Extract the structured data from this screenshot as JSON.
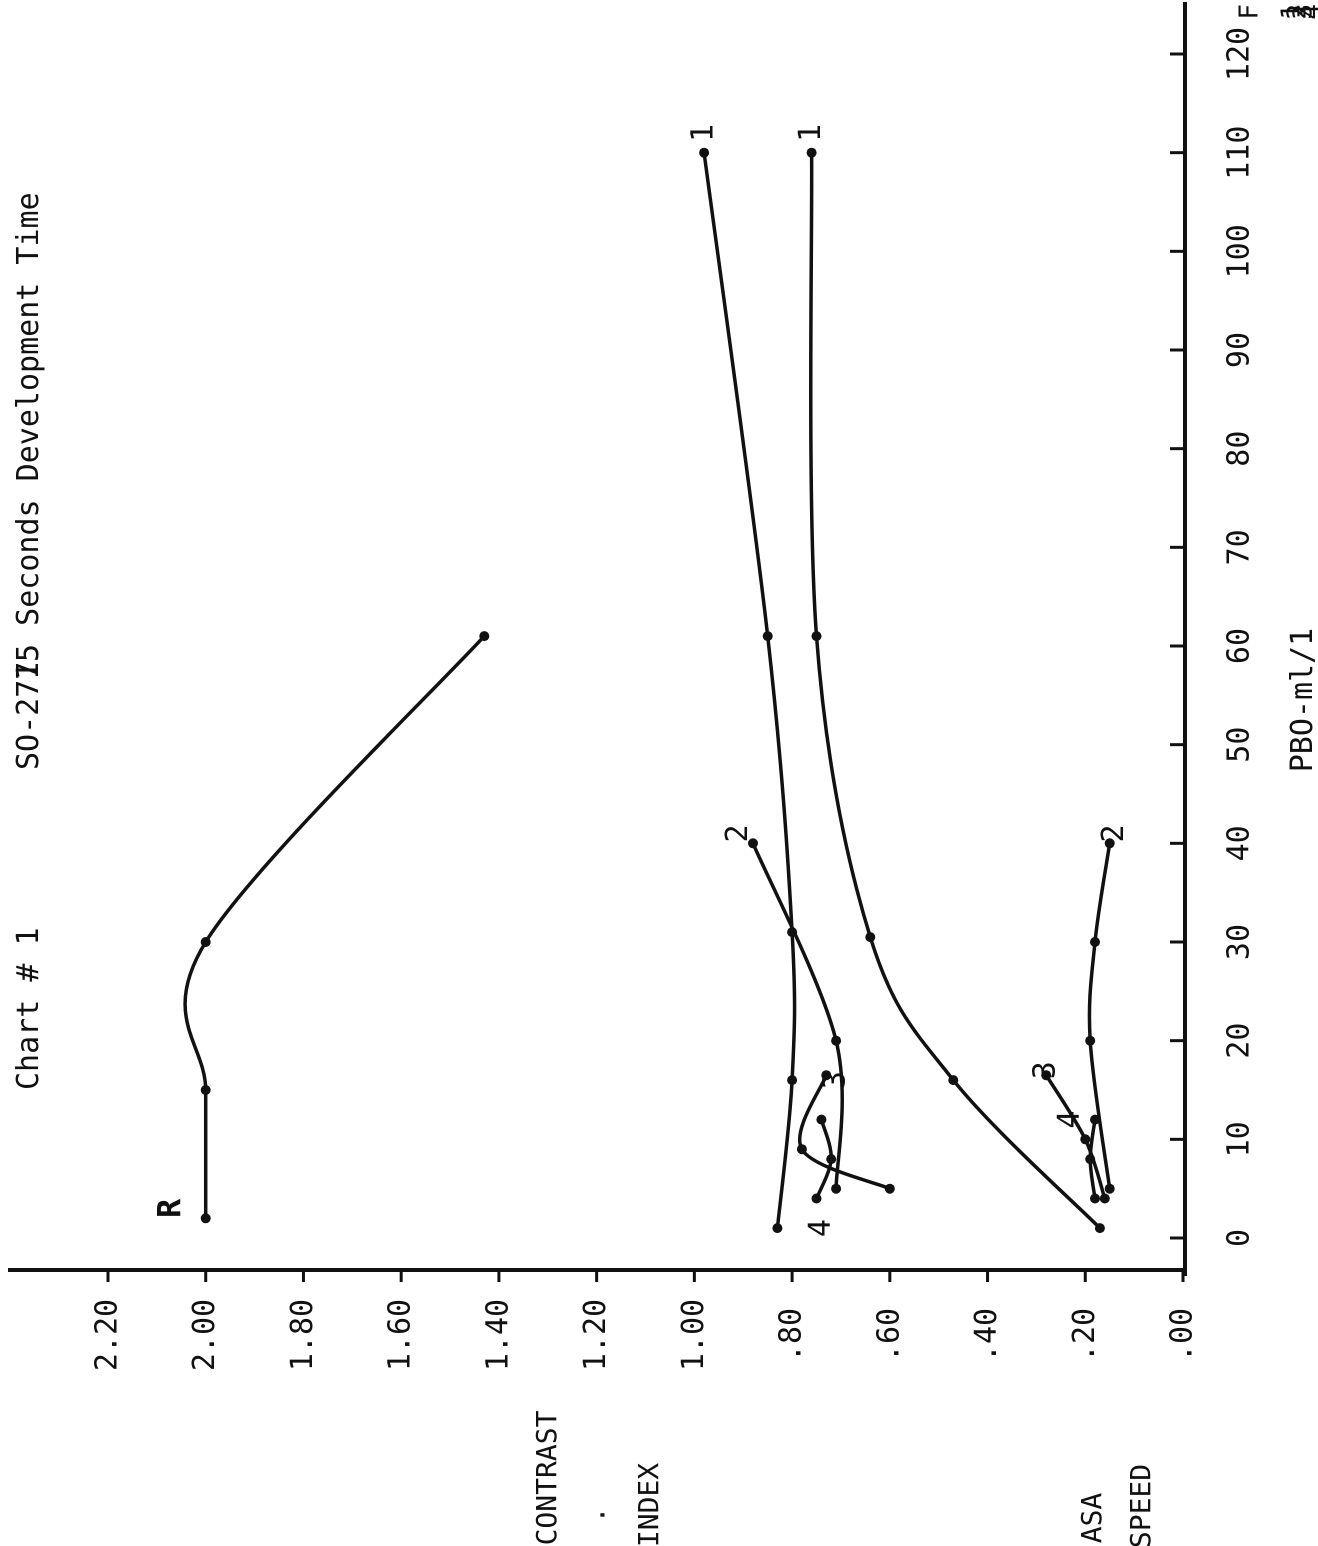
{
  "header": {
    "chart_number": "Chart # 1",
    "film": "SO-277",
    "condition": "15 Seconds Development Time",
    "corner_text": [
      "F",
      "1",
      "2",
      "3",
      "4"
    ]
  },
  "chart_data": {
    "type": "line",
    "title": "15 Seconds Development Time",
    "xlabel": "PBO-ml/1",
    "ylabel": "CONTRAST INDEX / ASA SPEED",
    "ylabel_lines": [
      "CONTRAST",
      "·",
      "INDEX",
      "",
      "ASA",
      "SPEED"
    ],
    "xlim": [
      0,
      120
    ],
    "ylim": [
      0,
      2.2
    ],
    "x_ticks": [
      0,
      10,
      20,
      30,
      40,
      50,
      60,
      70,
      80,
      90,
      100,
      110,
      120
    ],
    "x_tick_labels": [
      "0",
      "10",
      "20",
      "30",
      "40",
      "50",
      "60",
      "70",
      "80",
      "90",
      "100",
      "110",
      "120"
    ],
    "y_ticks": [
      0,
      0.2,
      0.4,
      0.6,
      0.8,
      1.0,
      1.2,
      1.4,
      1.6,
      1.8,
      2.0,
      2.2
    ],
    "y_tick_labels": [
      ".00",
      ".20",
      ".40",
      ".60",
      ".80",
      "1.00",
      "1.20",
      "1.40",
      "1.60",
      "1.80",
      "2.00",
      "2.20"
    ],
    "grid": false,
    "series": [
      {
        "name": "R",
        "label_at": [
          3,
          2.07
        ],
        "points": [
          [
            2,
            2.0
          ],
          [
            15,
            2.0
          ],
          [
            30,
            2.0
          ],
          [
            61,
            1.43
          ]
        ]
      },
      {
        "name": "1",
        "label_at": [
          112,
          0.98
        ],
        "points": [
          [
            1,
            0.83
          ],
          [
            16,
            0.8
          ],
          [
            31,
            0.8
          ],
          [
            61,
            0.85
          ],
          [
            110,
            0.98
          ]
        ]
      },
      {
        "name": "1",
        "label_at": [
          112,
          0.76
        ],
        "points": [
          [
            1,
            0.17
          ],
          [
            16,
            0.47
          ],
          [
            30.5,
            0.64
          ],
          [
            61,
            0.75
          ],
          [
            110,
            0.76
          ]
        ]
      },
      {
        "name": "2",
        "label_at": [
          41,
          0.91
        ],
        "points": [
          [
            5,
            0.71
          ],
          [
            20,
            0.71
          ],
          [
            40,
            0.88
          ]
        ]
      },
      {
        "name": "2",
        "label_at": [
          41,
          0.14
        ],
        "points": [
          [
            5,
            0.15
          ],
          [
            20,
            0.19
          ],
          [
            30,
            0.18
          ],
          [
            40,
            0.15
          ]
        ]
      },
      {
        "name": "3",
        "label_at": [
          16,
          0.71
        ],
        "points": [
          [
            5,
            0.6
          ],
          [
            9,
            0.78
          ],
          [
            16.5,
            0.73
          ]
        ]
      },
      {
        "name": "3",
        "label_at": [
          17,
          0.28
        ],
        "points": [
          [
            4,
            0.16
          ],
          [
            10,
            0.2
          ],
          [
            16.5,
            0.28
          ]
        ]
      },
      {
        "name": "4",
        "label_at": [
          1,
          0.74
        ],
        "points": [
          [
            4,
            0.75
          ],
          [
            8,
            0.72
          ],
          [
            12,
            0.74
          ]
        ]
      },
      {
        "name": "4",
        "label_at": [
          12,
          0.23
        ],
        "points": [
          [
            4,
            0.18
          ],
          [
            8,
            0.19
          ],
          [
            12,
            0.18
          ]
        ]
      }
    ]
  }
}
